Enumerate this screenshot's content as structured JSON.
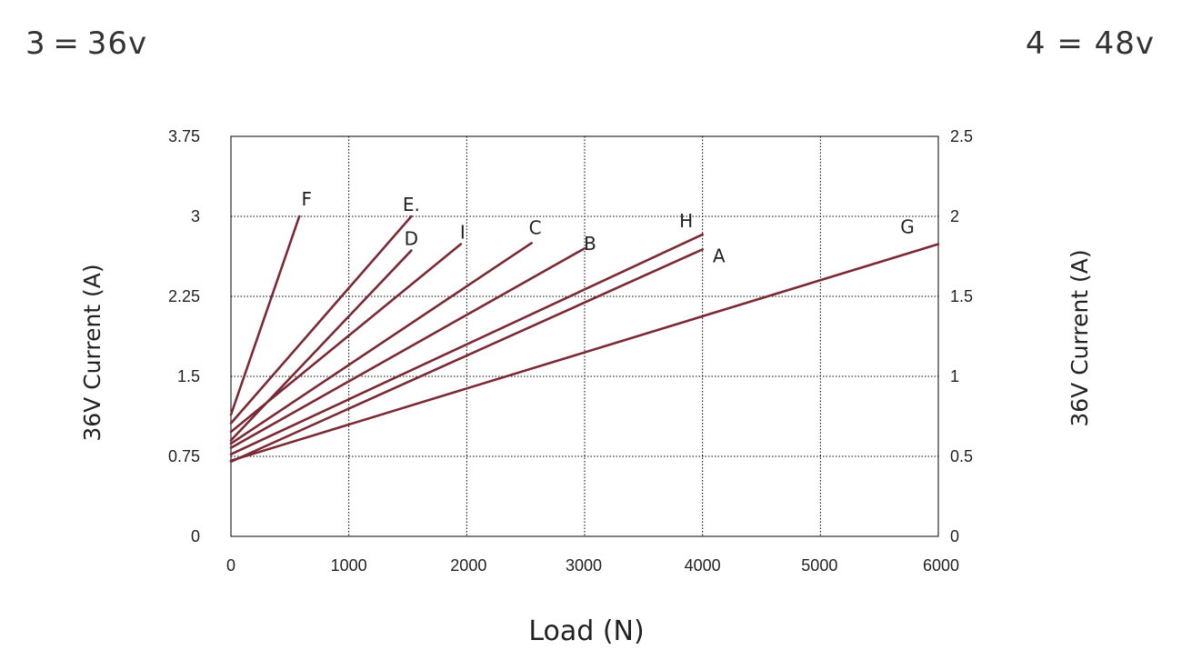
{
  "notes": {
    "left": "3 = 36v",
    "right": "4 = 48v"
  },
  "chart_data": {
    "type": "line",
    "xlabel": "Load (N)",
    "ylabel_left": "36V Current (A)",
    "ylabel_right": "36V Current (A)",
    "xlim": [
      0,
      6000
    ],
    "ylim_left": [
      0,
      3.75
    ],
    "ylim_right": [
      0,
      2.5
    ],
    "x_ticks": [
      "0",
      "1000",
      "2000",
      "3000",
      "4000",
      "5000",
      "6000"
    ],
    "y_left_ticks": [
      "0",
      "0.75",
      "1.5",
      "2.25",
      "3",
      "3.75"
    ],
    "y_right_ticks": [
      "0",
      "0.5",
      "1",
      "1.5",
      "2",
      "2.5"
    ],
    "grid": true,
    "series": [
      {
        "name": "F",
        "x": [
          0,
          580
        ],
        "y": [
          1.14,
          3.0
        ]
      },
      {
        "name": "E.",
        "x": [
          0,
          1530
        ],
        "y": [
          1.06,
          3.0
        ]
      },
      {
        "name": "D",
        "x": [
          0,
          1530
        ],
        "y": [
          0.9,
          2.68
        ]
      },
      {
        "name": "I",
        "x": [
          0,
          1950
        ],
        "y": [
          0.98,
          2.74
        ]
      },
      {
        "name": "C",
        "x": [
          0,
          2550
        ],
        "y": [
          0.87,
          2.75
        ]
      },
      {
        "name": "B",
        "x": [
          0,
          3000
        ],
        "y": [
          0.83,
          2.7
        ]
      },
      {
        "name": "H",
        "x": [
          0,
          4000
        ],
        "y": [
          0.77,
          2.83
        ]
      },
      {
        "name": "A",
        "x": [
          0,
          4000
        ],
        "y": [
          0.7,
          2.69
        ]
      },
      {
        "name": "G",
        "x": [
          0,
          6000
        ],
        "y": [
          0.71,
          2.74
        ]
      }
    ]
  }
}
